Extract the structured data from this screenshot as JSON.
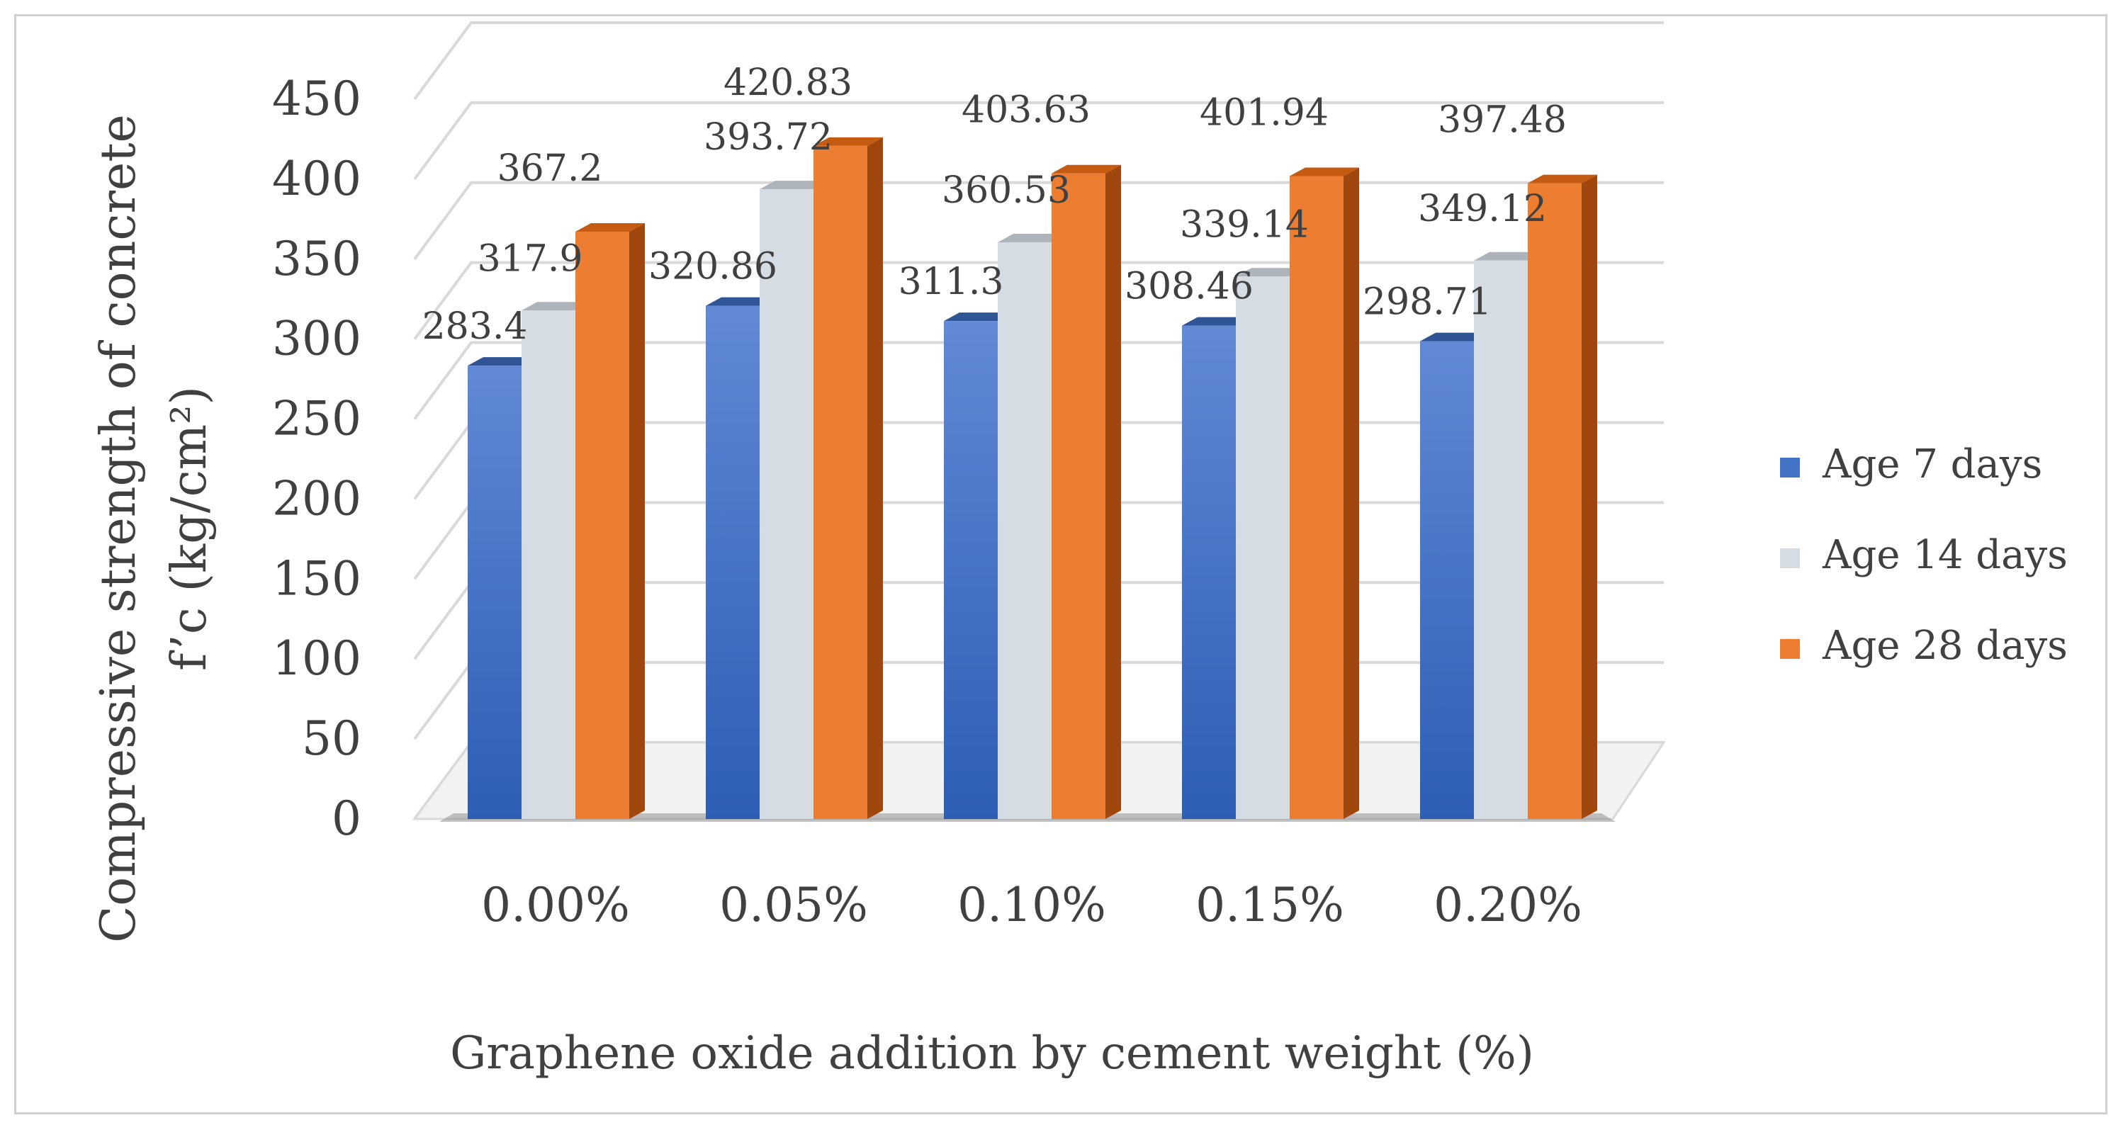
{
  "colors": {
    "series_front": [
      "#4472c4",
      "#d6dce4",
      "#ed7d31"
    ],
    "series_top": [
      "#2f5597",
      "#aeb4bb",
      "#c55a11"
    ],
    "series_side": [
      "#264478",
      "#9ea4ab",
      "#a0470f"
    ],
    "gridline": "#d9d9d9",
    "text": "#404040"
  },
  "chart_data": {
    "type": "bar",
    "style": "3d-clustered-column",
    "title": "",
    "ylabel_line1": "Compressive strength of concrete",
    "ylabel_line2": "f’c (kg/cm²)",
    "xlabel": "Graphene oxide addition by cement weight (%)",
    "categories": [
      "0.00%",
      "0.05%",
      "0.10%",
      "0.15%",
      "0.20%"
    ],
    "series": [
      {
        "name": "Age 7 days",
        "values": [
          283.4,
          320.86,
          311.3,
          308.46,
          298.71
        ],
        "labels": [
          "283.4",
          "320.86",
          "311.3",
          "308.46",
          "298.71"
        ]
      },
      {
        "name": "Age 14 days",
        "values": [
          317.9,
          393.72,
          360.53,
          339.14,
          349.12
        ],
        "labels": [
          "317.9",
          "393.72",
          "360.53",
          "339.14",
          "349.12"
        ]
      },
      {
        "name": "Age 28 days",
        "values": [
          367.2,
          420.83,
          403.63,
          401.94,
          397.48
        ],
        "labels": [
          "367.2",
          "420.83",
          "403.63",
          "401.94",
          "397.48"
        ]
      }
    ],
    "yticks": [
      "0",
      "50",
      "100",
      "150",
      "200",
      "250",
      "300",
      "350",
      "400",
      "450"
    ],
    "ylim": [
      0,
      450
    ],
    "grid": true,
    "legend_position": "right"
  }
}
